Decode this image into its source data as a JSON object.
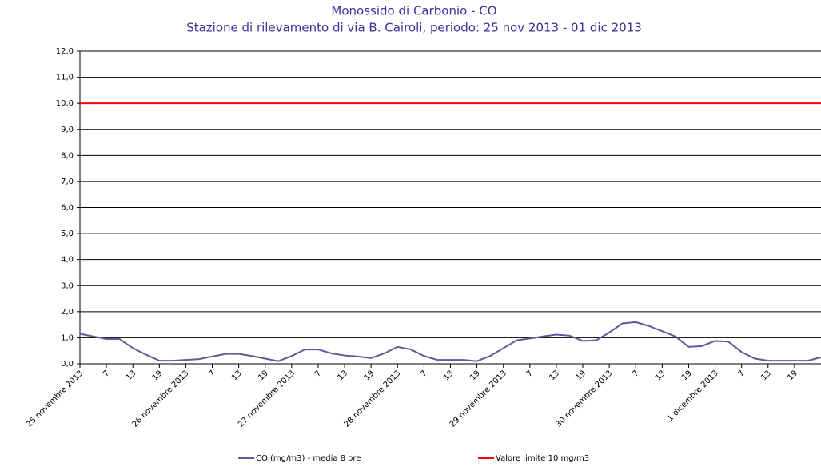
{
  "chart_data": {
    "type": "line",
    "title": "Monossido di Carbonio - CO",
    "subtitle": "Stazione di rilevamento di via B. Cairoli, periodo: 25 nov 2013 - 01 dic 2013",
    "categories": [
      "25 novembre 2013",
      null,
      "7",
      null,
      "13",
      null,
      "19",
      null,
      "26 novembre 2013",
      null,
      "7",
      null,
      "13",
      null,
      "19",
      null,
      "27 novembre 2013",
      null,
      "7",
      null,
      "13",
      null,
      "19",
      null,
      "28 novembre 2013",
      null,
      "7",
      null,
      "13",
      null,
      "19",
      null,
      "29 novembre 2013",
      null,
      "7",
      null,
      "13",
      null,
      "19",
      null,
      "30 novembre 2013",
      null,
      "7",
      null,
      "13",
      null,
      "19",
      null,
      "1 dicembre 2013",
      null,
      "7",
      null,
      "13",
      null,
      "19",
      null,
      null
    ],
    "series": [
      {
        "name": "CO (mg/m3) - media 8 ore",
        "color": "#5c5c99",
        "values": [
          1.15,
          1.05,
          0.95,
          0.95,
          0.6,
          0.35,
          0.12,
          0.12,
          0.15,
          0.18,
          0.28,
          0.38,
          0.38,
          0.3,
          0.2,
          0.1,
          0.3,
          0.55,
          0.55,
          0.4,
          0.32,
          0.28,
          0.22,
          0.4,
          0.65,
          0.55,
          0.3,
          0.15,
          0.15,
          0.15,
          0.1,
          0.3,
          0.6,
          0.9,
          0.97,
          1.05,
          1.12,
          1.08,
          0.88,
          0.9,
          1.2,
          1.55,
          1.6,
          1.45,
          1.25,
          1.05,
          0.65,
          0.68,
          0.88,
          0.85,
          0.45,
          0.2,
          0.12,
          0.12,
          0.12,
          0.12,
          0.25
        ]
      }
    ],
    "threshold": {
      "name": "Valore limite 10 mg/m3",
      "value": 10,
      "color": "#ff0000"
    },
    "ylim": [
      0,
      12
    ],
    "yticks": [
      {
        "value": 0,
        "label": "0,0"
      },
      {
        "value": 1,
        "label": "1,0"
      },
      {
        "value": 2,
        "label": "2,0"
      },
      {
        "value": 3,
        "label": "3,0"
      },
      {
        "value": 4,
        "label": "4,0"
      },
      {
        "value": 5,
        "label": "5,0"
      },
      {
        "value": 6,
        "label": "6,0"
      },
      {
        "value": 7,
        "label": "7,0"
      },
      {
        "value": 8,
        "label": "8,0"
      },
      {
        "value": 9,
        "label": "9,0"
      },
      {
        "value": 10,
        "label": "10,0"
      },
      {
        "value": 11,
        "label": "11,0"
      },
      {
        "value": 12,
        "label": "12,0"
      }
    ],
    "grid": true
  }
}
